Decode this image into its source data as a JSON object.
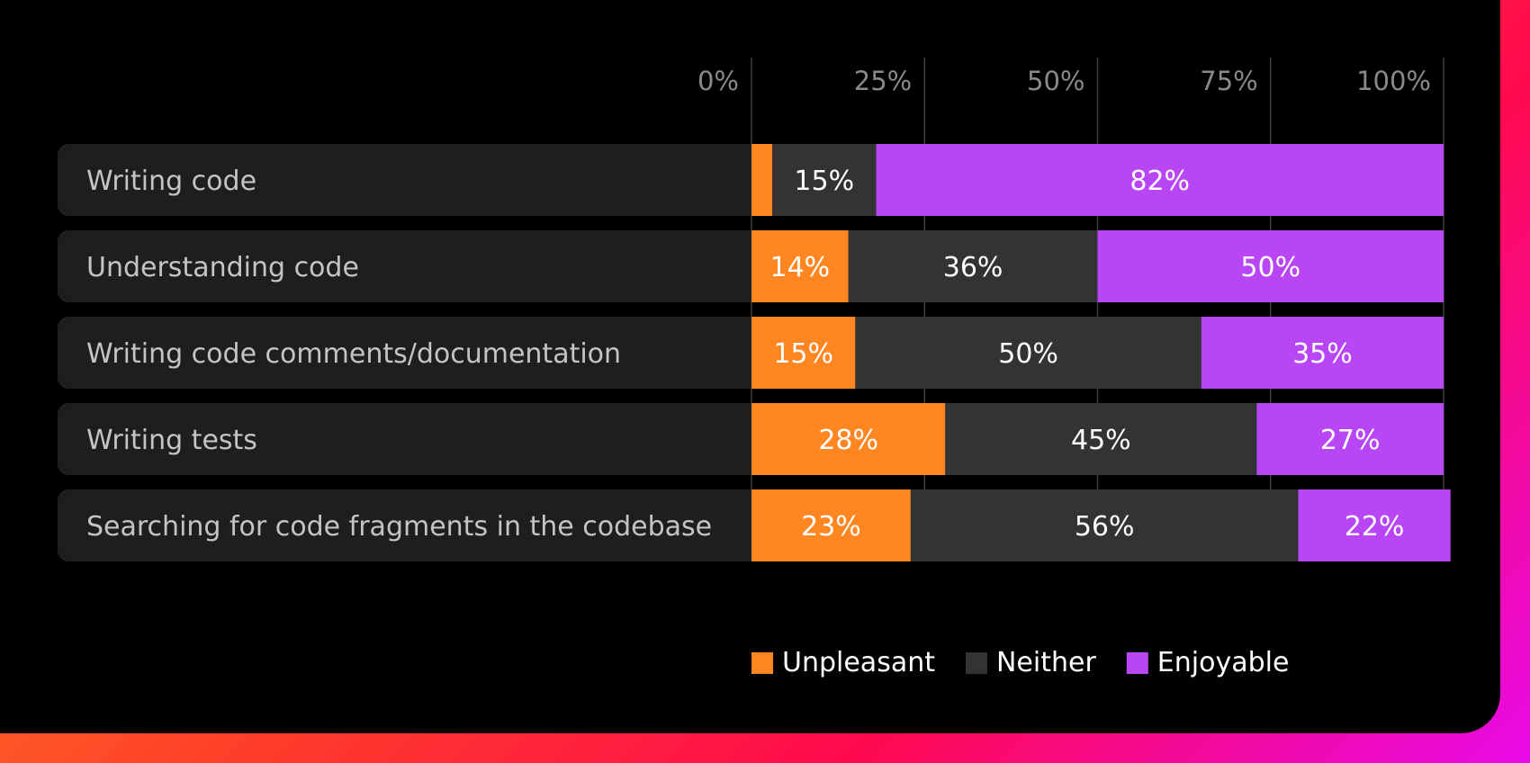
{
  "chart_data": {
    "type": "bar",
    "orientation": "horizontal",
    "stacked": true,
    "xlim": [
      0,
      100
    ],
    "x_ticks": [
      "0%",
      "25%",
      "50%",
      "75%",
      "100%"
    ],
    "categories": [
      "Writing code",
      "Understanding code",
      "Writing code comments/documentation",
      "Writing tests",
      "Searching for code fragments in the codebase"
    ],
    "series": [
      {
        "name": "Unpleasant",
        "color": "#ff8621",
        "values": [
          3,
          14,
          15,
          28,
          23
        ],
        "labels": [
          "",
          "14%",
          "15%",
          "28%",
          "23%"
        ]
      },
      {
        "name": "Neither",
        "color": "#333333",
        "values": [
          15,
          36,
          50,
          45,
          56
        ],
        "labels": [
          "15%",
          "36%",
          "50%",
          "45%",
          "56%"
        ]
      },
      {
        "name": "Enjoyable",
        "color": "#b846f5",
        "values": [
          82,
          50,
          35,
          27,
          22
        ],
        "labels": [
          "82%",
          "50%",
          "35%",
          "27%",
          "22%"
        ]
      }
    ],
    "legend_position": "bottom",
    "grid": true
  }
}
